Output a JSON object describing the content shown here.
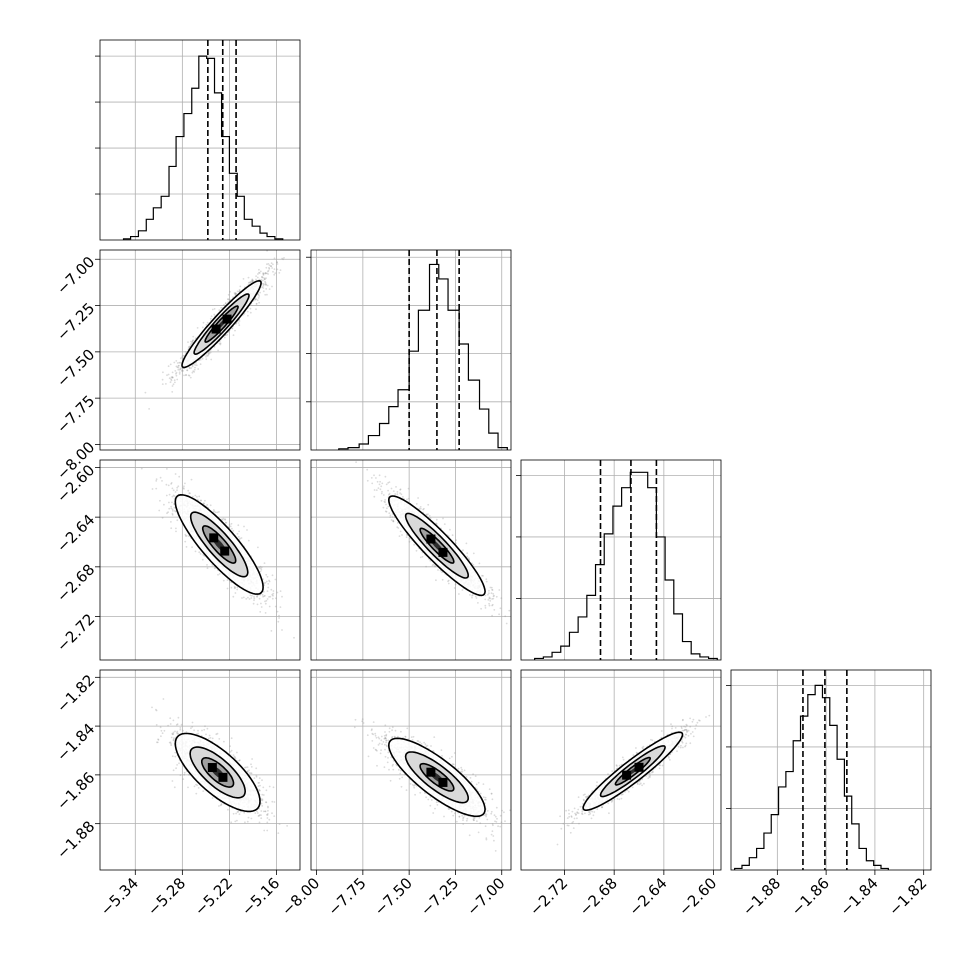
{
  "chart_data": {
    "type": "corner",
    "grid": true,
    "colors": {
      "axes": "#000000",
      "grid": "#b0b0b0",
      "scatter": "#999999",
      "density_dark": "#202020"
    },
    "parameters": [
      {
        "range": [
          -5.385,
          -5.13
        ],
        "ticks": [
          -5.34,
          -5.28,
          -5.22,
          -5.16
        ],
        "tick_labels": [
          "−5.34",
          "−5.28",
          "−5.22",
          "−5.16"
        ],
        "median": -5.2285,
        "q16": -5.2475,
        "q84": -5.2115,
        "hist_y_ticks": [
          20,
          40,
          60,
          80
        ],
        "hist_y_max": 87,
        "hist": [
          {
            "start": -5.355,
            "end": -5.346,
            "value": 0.5
          },
          {
            "start": -5.346,
            "end": -5.336,
            "value": 1.5
          },
          {
            "start": -5.336,
            "end": -5.326,
            "value": 4
          },
          {
            "start": -5.326,
            "end": -5.317,
            "value": 9
          },
          {
            "start": -5.317,
            "end": -5.307,
            "value": 14
          },
          {
            "start": -5.307,
            "end": -5.297,
            "value": 19
          },
          {
            "start": -5.297,
            "end": -5.288,
            "value": 32
          },
          {
            "start": -5.288,
            "end": -5.278,
            "value": 45
          },
          {
            "start": -5.278,
            "end": -5.268,
            "value": 55
          },
          {
            "start": -5.268,
            "end": -5.259,
            "value": 66
          },
          {
            "start": -5.259,
            "end": -5.249,
            "value": 80
          },
          {
            "start": -5.249,
            "end": -5.239,
            "value": 79
          },
          {
            "start": -5.239,
            "end": -5.23,
            "value": 64
          },
          {
            "start": -5.23,
            "end": -5.22,
            "value": 45
          },
          {
            "start": -5.22,
            "end": -5.21,
            "value": 29
          },
          {
            "start": -5.21,
            "end": -5.201,
            "value": 19
          },
          {
            "start": -5.201,
            "end": -5.191,
            "value": 9
          },
          {
            "start": -5.191,
            "end": -5.181,
            "value": 6
          },
          {
            "start": -5.181,
            "end": -5.172,
            "value": 3
          },
          {
            "start": -5.172,
            "end": -5.162,
            "value": 1.5
          },
          {
            "start": -5.162,
            "end": -5.152,
            "value": 0.5
          }
        ]
      },
      {
        "range": [
          -8.03,
          -6.95
        ],
        "ticks": [
          -8.0,
          -7.75,
          -7.5,
          -7.25,
          -7.0
        ],
        "tick_labels": [
          "−8.00",
          "−7.75",
          "−7.50",
          "−7.25",
          "−7.00"
        ],
        "median": -7.35,
        "q16": -7.5,
        "q84": -7.23,
        "hist_y_ticks": [
          20,
          40,
          60,
          80
        ],
        "hist_y_max": 83,
        "hist": [
          {
            "start": -7.88,
            "end": -7.83,
            "value": 0.5
          },
          {
            "start": -7.83,
            "end": -7.77,
            "value": 1
          },
          {
            "start": -7.77,
            "end": -7.72,
            "value": 2.5
          },
          {
            "start": -7.72,
            "end": -7.66,
            "value": 6
          },
          {
            "start": -7.66,
            "end": -7.61,
            "value": 11
          },
          {
            "start": -7.61,
            "end": -7.56,
            "value": 18
          },
          {
            "start": -7.56,
            "end": -7.5,
            "value": 25
          },
          {
            "start": -7.5,
            "end": -7.45,
            "value": 41
          },
          {
            "start": -7.45,
            "end": -7.39,
            "value": 58
          },
          {
            "start": -7.39,
            "end": -7.34,
            "value": 77
          },
          {
            "start": -7.34,
            "end": -7.29,
            "value": 71
          },
          {
            "start": -7.29,
            "end": -7.23,
            "value": 58
          },
          {
            "start": -7.23,
            "end": -7.18,
            "value": 44
          },
          {
            "start": -7.18,
            "end": -7.12,
            "value": 29
          },
          {
            "start": -7.12,
            "end": -7.07,
            "value": 17
          },
          {
            "start": -7.07,
            "end": -7.02,
            "value": 7
          },
          {
            "start": -7.02,
            "end": -6.97,
            "value": 1
          }
        ]
      },
      {
        "range": [
          -2.755,
          -2.594
        ],
        "ticks": [
          -2.72,
          -2.68,
          -2.64,
          -2.6
        ],
        "tick_labels": [
          "−2.72",
          "−2.68",
          "−2.64",
          "−2.60"
        ],
        "median": -2.6665,
        "q16": -2.691,
        "q84": -2.646,
        "hist_y_ticks": [
          20,
          40,
          60
        ],
        "hist_y_max": 65,
        "hist": [
          {
            "start": -2.744,
            "end": -2.737,
            "value": 0.5
          },
          {
            "start": -2.737,
            "end": -2.73,
            "value": 1
          },
          {
            "start": -2.73,
            "end": -2.723,
            "value": 2.5
          },
          {
            "start": -2.723,
            "end": -2.716,
            "value": 4.5
          },
          {
            "start": -2.716,
            "end": -2.709,
            "value": 9
          },
          {
            "start": -2.709,
            "end": -2.702,
            "value": 14
          },
          {
            "start": -2.702,
            "end": -2.695,
            "value": 21
          },
          {
            "start": -2.695,
            "end": -2.688,
            "value": 31
          },
          {
            "start": -2.688,
            "end": -2.681,
            "value": 41
          },
          {
            "start": -2.681,
            "end": -2.674,
            "value": 50
          },
          {
            "start": -2.674,
            "end": -2.667,
            "value": 56
          },
          {
            "start": -2.667,
            "end": -2.66,
            "value": 61
          },
          {
            "start": -2.66,
            "end": -2.653,
            "value": 61
          },
          {
            "start": -2.653,
            "end": -2.646,
            "value": 56
          },
          {
            "start": -2.646,
            "end": -2.639,
            "value": 40
          },
          {
            "start": -2.639,
            "end": -2.632,
            "value": 26
          },
          {
            "start": -2.632,
            "end": -2.625,
            "value": 15
          },
          {
            "start": -2.625,
            "end": -2.618,
            "value": 6
          },
          {
            "start": -2.618,
            "end": -2.611,
            "value": 2
          },
          {
            "start": -2.611,
            "end": -2.604,
            "value": 1
          },
          {
            "start": -2.604,
            "end": -2.597,
            "value": 0.5
          }
        ]
      },
      {
        "range": [
          -1.899,
          -1.817
        ],
        "ticks": [
          -1.88,
          -1.86,
          -1.84,
          -1.82
        ],
        "tick_labels": [
          "−1.88",
          "−1.86",
          "−1.84",
          "−1.82"
        ],
        "median": -1.8605,
        "q16": -1.8695,
        "q84": -1.8515,
        "hist_y_ticks": [
          20,
          40,
          60
        ],
        "hist_y_max": 65,
        "hist": [
          {
            "start": -1.8975,
            "end": -1.8945,
            "value": 0.5
          },
          {
            "start": -1.8945,
            "end": -1.8915,
            "value": 1.5
          },
          {
            "start": -1.8915,
            "end": -1.8885,
            "value": 4
          },
          {
            "start": -1.8885,
            "end": -1.8855,
            "value": 7
          },
          {
            "start": -1.8855,
            "end": -1.8825,
            "value": 12
          },
          {
            "start": -1.8825,
            "end": -1.8795,
            "value": 18
          },
          {
            "start": -1.8795,
            "end": -1.8765,
            "value": 27
          },
          {
            "start": -1.8765,
            "end": -1.8735,
            "value": 32
          },
          {
            "start": -1.8735,
            "end": -1.8705,
            "value": 42
          },
          {
            "start": -1.8705,
            "end": -1.8675,
            "value": 50
          },
          {
            "start": -1.8675,
            "end": -1.8645,
            "value": 57
          },
          {
            "start": -1.8645,
            "end": -1.8615,
            "value": 60
          },
          {
            "start": -1.8615,
            "end": -1.8585,
            "value": 56
          },
          {
            "start": -1.8585,
            "end": -1.8555,
            "value": 47
          },
          {
            "start": -1.8555,
            "end": -1.8525,
            "value": 36
          },
          {
            "start": -1.8525,
            "end": -1.8495,
            "value": 24
          },
          {
            "start": -1.8495,
            "end": -1.8465,
            "value": 15
          },
          {
            "start": -1.8465,
            "end": -1.8435,
            "value": 7
          },
          {
            "start": -1.8435,
            "end": -1.8405,
            "value": 3
          },
          {
            "start": -1.8405,
            "end": -1.8375,
            "value": 1.5
          },
          {
            "start": -1.8375,
            "end": -1.8345,
            "value": 0.5
          }
        ]
      }
    ],
    "joint": [
      {
        "row": 1,
        "col": 0,
        "center": [
          -5.23,
          -7.35
        ],
        "sd": [
          0.028,
          0.13
        ],
        "corr": 0.95,
        "points": 1700,
        "seed": 11,
        "contours": [
          0.75,
          1.25,
          1.8
        ]
      },
      {
        "row": 2,
        "col": 0,
        "center": [
          -5.233,
          -2.662
        ],
        "sd": [
          0.028,
          0.02
        ],
        "corr": -0.86,
        "points": 1700,
        "seed": 23,
        "contours": [
          0.75,
          1.3,
          2.0
        ]
      },
      {
        "row": 2,
        "col": 1,
        "center": [
          -7.35,
          -2.663
        ],
        "sd": [
          0.13,
          0.02
        ],
        "corr": -0.92,
        "points": 1700,
        "seed": 37,
        "contours": [
          0.7,
          1.3,
          2.0
        ]
      },
      {
        "row": 3,
        "col": 0,
        "center": [
          -5.235,
          -1.859
        ],
        "sd": [
          0.027,
          0.008
        ],
        "corr": -0.74,
        "points": 1700,
        "seed": 41,
        "contours": [
          0.75,
          1.3,
          2.0
        ]
      },
      {
        "row": 3,
        "col": 1,
        "center": [
          -7.35,
          -1.861
        ],
        "sd": [
          0.13,
          0.008
        ],
        "corr": -0.82,
        "points": 1700,
        "seed": 53,
        "contours": [
          0.7,
          1.3,
          2.0
        ]
      },
      {
        "row": 3,
        "col": 2,
        "center": [
          -2.665,
          -1.8585
        ],
        "sd": [
          0.02,
          0.008
        ],
        "corr": 0.94,
        "points": 1700,
        "seed": 67,
        "contours": [
          0.7,
          1.3,
          2.0
        ]
      }
    ]
  }
}
